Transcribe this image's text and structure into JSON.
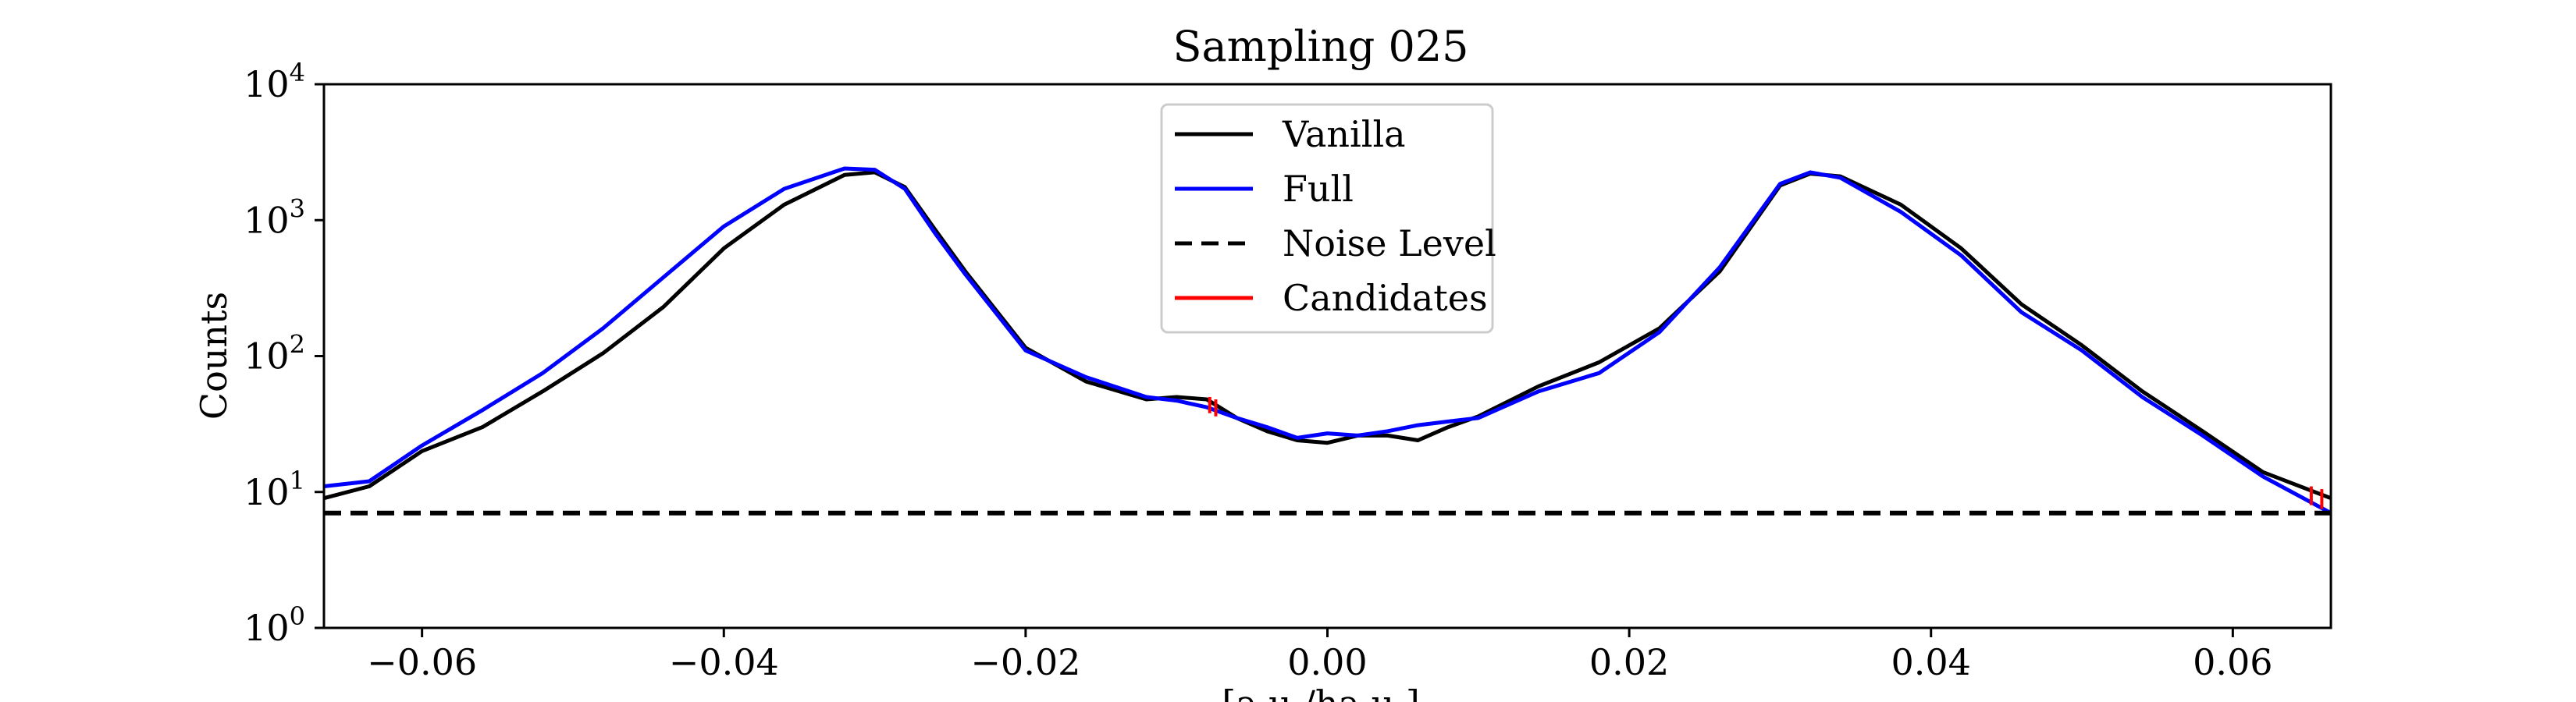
{
  "chart_data": {
    "type": "line",
    "title": "Sampling 025",
    "xlabel": "[a.u./ha.u.]",
    "ylabel": "Counts",
    "xlim": [
      -0.0665,
      0.0665
    ],
    "ylim": [
      1,
      10000
    ],
    "yscale": "log",
    "grid": false,
    "legend_position": "top-center",
    "x_ticks": [
      -0.06,
      -0.04,
      -0.02,
      0.0,
      0.02,
      0.04,
      0.06
    ],
    "x_tick_labels": [
      "−0.06",
      "−0.04",
      "−0.02",
      "0.00",
      "0.02",
      "0.04",
      "0.06"
    ],
    "y_ticks": [
      1,
      10,
      100,
      1000,
      10000
    ],
    "y_tick_labels": [
      {
        "base": "10",
        "exp": "0"
      },
      {
        "base": "10",
        "exp": "1"
      },
      {
        "base": "10",
        "exp": "2"
      },
      {
        "base": "10",
        "exp": "3"
      },
      {
        "base": "10",
        "exp": "4"
      }
    ],
    "series": [
      {
        "name": "Vanilla",
        "color": "#000000",
        "style": "solid",
        "x": [
          -0.0665,
          -0.0635,
          -0.06,
          -0.056,
          -0.052,
          -0.048,
          -0.044,
          -0.04,
          -0.036,
          -0.032,
          -0.03,
          -0.028,
          -0.026,
          -0.024,
          -0.02,
          -0.016,
          -0.012,
          -0.01,
          -0.008,
          -0.006,
          -0.004,
          -0.002,
          0.0,
          0.002,
          0.004,
          0.006,
          0.008,
          0.01,
          0.014,
          0.018,
          0.022,
          0.026,
          0.03,
          0.032,
          0.034,
          0.038,
          0.042,
          0.046,
          0.05,
          0.054,
          0.058,
          0.062,
          0.0665
        ],
        "y": [
          9,
          11,
          20,
          30,
          55,
          105,
          230,
          620,
          1300,
          2150,
          2250,
          1750,
          850,
          420,
          115,
          65,
          48,
          50,
          48,
          35,
          28,
          24,
          23,
          26,
          26,
          24,
          30,
          36,
          60,
          90,
          160,
          420,
          1800,
          2200,
          2100,
          1300,
          620,
          240,
          120,
          55,
          28,
          14,
          9
        ]
      },
      {
        "name": "Full",
        "color": "#0000ff",
        "style": "solid",
        "x": [
          -0.0665,
          -0.0635,
          -0.06,
          -0.056,
          -0.052,
          -0.048,
          -0.044,
          -0.04,
          -0.036,
          -0.032,
          -0.03,
          -0.028,
          -0.026,
          -0.024,
          -0.02,
          -0.016,
          -0.012,
          -0.01,
          -0.008,
          -0.006,
          -0.004,
          -0.002,
          0.0,
          0.002,
          0.004,
          0.006,
          0.008,
          0.01,
          0.014,
          0.018,
          0.022,
          0.026,
          0.03,
          0.032,
          0.034,
          0.038,
          0.042,
          0.046,
          0.05,
          0.054,
          0.058,
          0.062,
          0.0665
        ],
        "y": [
          11,
          12,
          22,
          40,
          75,
          160,
          380,
          900,
          1700,
          2400,
          2350,
          1700,
          800,
          400,
          110,
          70,
          50,
          47,
          42,
          35,
          30,
          25,
          27,
          26,
          28,
          31,
          33,
          35,
          55,
          75,
          150,
          450,
          1850,
          2250,
          2050,
          1150,
          550,
          210,
          110,
          50,
          26,
          13,
          7
        ]
      },
      {
        "name": "Noise Level",
        "color": "#000000",
        "style": "dashed",
        "x": [
          -0.0665,
          0.0665
        ],
        "y": [
          7,
          7
        ]
      },
      {
        "name": "Candidates",
        "color": "#ff0000",
        "style": "solid",
        "x": [],
        "y": []
      }
    ],
    "candidate_segments": [
      {
        "x": -0.0078,
        "y_low": 38,
        "y_high": 50
      },
      {
        "x": -0.0074,
        "y_low": 36,
        "y_high": 48
      },
      {
        "x": 0.0652,
        "y_low": 8,
        "y_high": 11
      },
      {
        "x": 0.0659,
        "y_low": 7.5,
        "y_high": 10.5
      }
    ]
  }
}
